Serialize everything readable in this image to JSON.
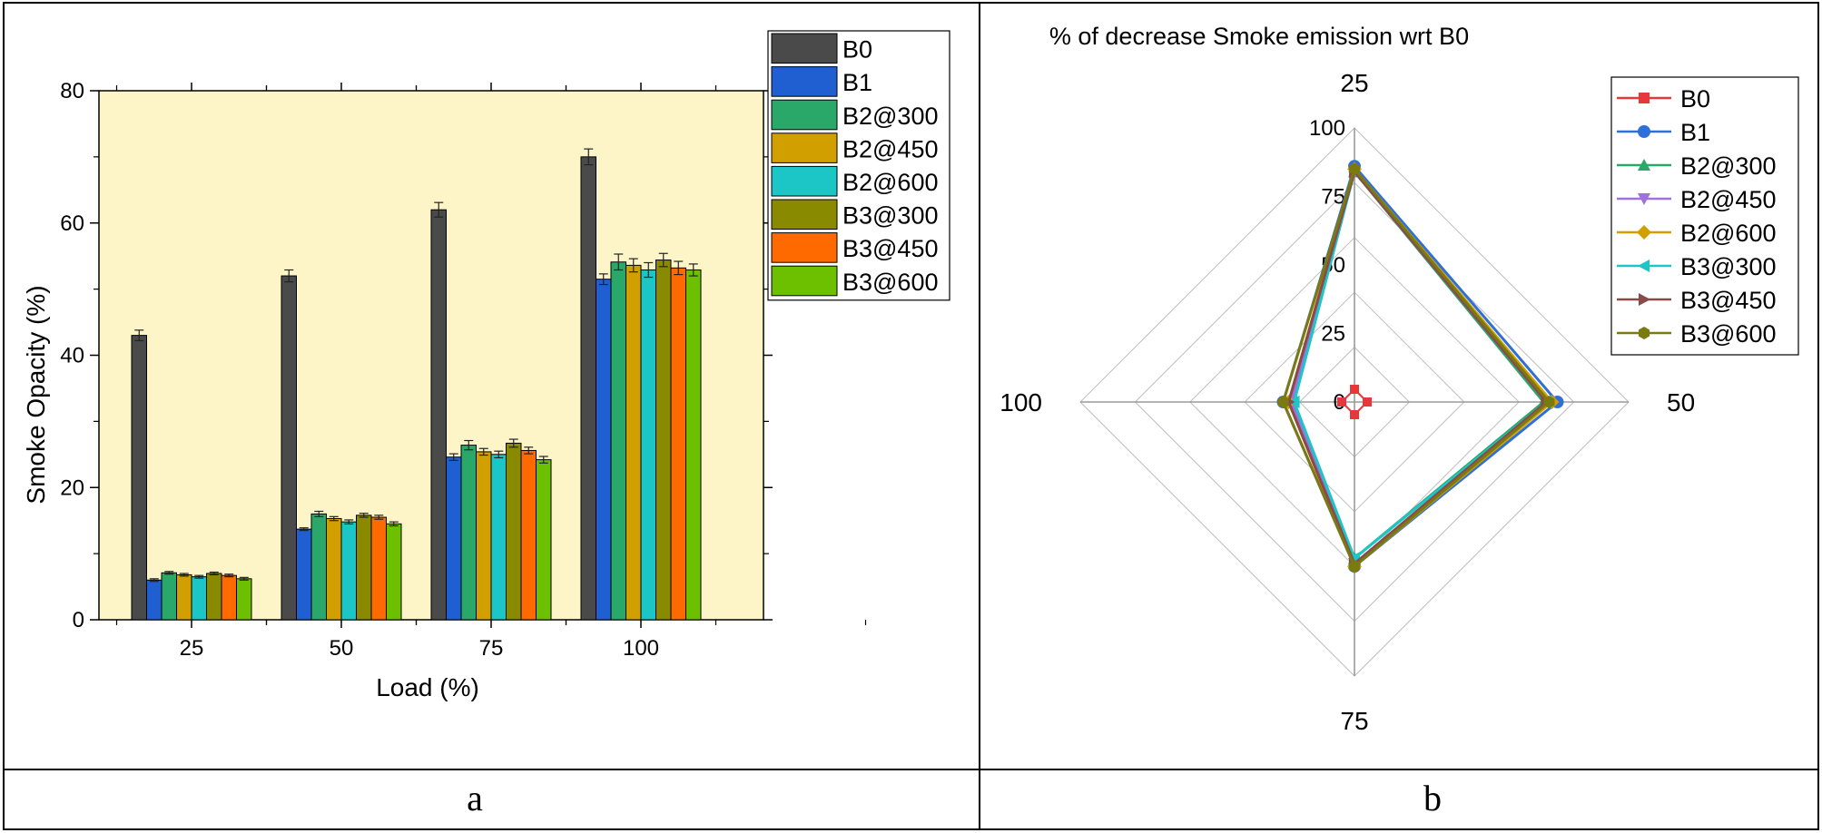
{
  "panel_labels": [
    "a",
    "b"
  ],
  "chart_data": [
    {
      "type": "bar",
      "title": "",
      "xlabel": "Load (%)",
      "ylabel": "Smoke Opacity (%)",
      "ylim": [
        0,
        80
      ],
      "yticks": [
        "0",
        "20",
        "40",
        "60",
        "80"
      ],
      "categories": [
        "25",
        "50",
        "75",
        "100"
      ],
      "background": "#fdf5c8",
      "legend_position": "top-right",
      "error_bars": true,
      "series": [
        {
          "name": "B0",
          "color": "#4a4a4a",
          "values": [
            43,
            52,
            62,
            70
          ],
          "errors": [
            0.8,
            0.9,
            1.1,
            1.2
          ]
        },
        {
          "name": "B1",
          "color": "#1f5fd1",
          "values": [
            6,
            13.7,
            24.6,
            51.5
          ],
          "errors": [
            0.2,
            0.2,
            0.5,
            0.8
          ]
        },
        {
          "name": "B2@300",
          "color": "#2aa86a",
          "values": [
            7.1,
            16,
            26.4,
            54.1
          ],
          "errors": [
            0.2,
            0.4,
            0.7,
            1.2
          ]
        },
        {
          "name": "B2@450",
          "color": "#d1a000",
          "values": [
            6.8,
            15.3,
            25.4,
            53.6
          ],
          "errors": [
            0.2,
            0.3,
            0.5,
            1.0
          ]
        },
        {
          "name": "B2@600",
          "color": "#1cc6c6",
          "values": [
            6.5,
            14.8,
            25,
            52.9
          ],
          "errors": [
            0.2,
            0.3,
            0.5,
            1.1
          ]
        },
        {
          "name": "B3@300",
          "color": "#8a8a00",
          "values": [
            7,
            15.8,
            26.7,
            54.4
          ],
          "errors": [
            0.2,
            0.3,
            0.6,
            1.0
          ]
        },
        {
          "name": "B3@450",
          "color": "#ff6a00",
          "values": [
            6.7,
            15.5,
            25.6,
            53.2
          ],
          "errors": [
            0.2,
            0.3,
            0.5,
            1.0
          ]
        },
        {
          "name": "B3@600",
          "color": "#6cc000",
          "values": [
            6.2,
            14.5,
            24.2,
            52.9
          ],
          "errors": [
            0.2,
            0.3,
            0.5,
            0.9
          ]
        }
      ]
    },
    {
      "type": "radar",
      "title": "% of decrease Smoke emission wrt B0",
      "axes": [
        "25",
        "50",
        "75",
        "100"
      ],
      "rlim": [
        0,
        100
      ],
      "rticks": [
        "0",
        "25",
        "50",
        "75",
        "100"
      ],
      "legend_position": "top-right",
      "series": [
        {
          "name": "B0",
          "color": "#e8373a",
          "marker": "square",
          "values": [
            0,
            0,
            0,
            0
          ]
        },
        {
          "name": "B1",
          "color": "#2f6fd8",
          "marker": "circle",
          "values": [
            86,
            74,
            60,
            26
          ]
        },
        {
          "name": "B2@300",
          "color": "#2aa86a",
          "marker": "triangle-up",
          "values": [
            84,
            69,
            57,
            23
          ]
        },
        {
          "name": "B2@450",
          "color": "#a070e0",
          "marker": "triangle-down",
          "values": [
            84,
            71,
            59,
            23
          ]
        },
        {
          "name": "B2@600",
          "color": "#d1a000",
          "marker": "diamond",
          "values": [
            85,
            72,
            60,
            24
          ]
        },
        {
          "name": "B3@300",
          "color": "#1cc6c6",
          "marker": "triangle-left",
          "values": [
            84,
            70,
            57,
            22
          ]
        },
        {
          "name": "B3@450",
          "color": "#8b4a4a",
          "marker": "triangle-right",
          "values": [
            84,
            70,
            59,
            24
          ]
        },
        {
          "name": "B3@600",
          "color": "#7a7a10",
          "marker": "hexagon",
          "values": [
            85,
            71,
            60,
            26
          ]
        }
      ]
    }
  ]
}
